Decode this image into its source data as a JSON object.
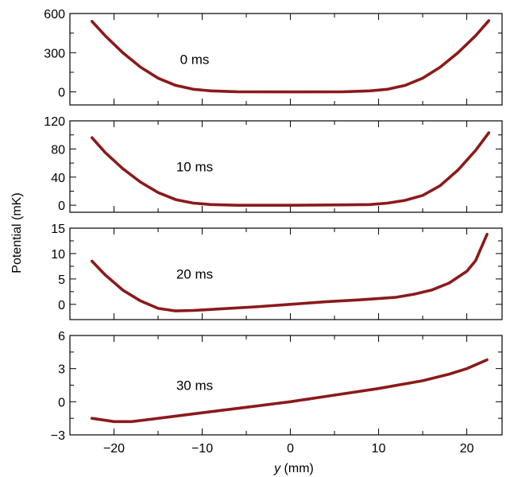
{
  "colors": {
    "curve": "#8b1a1a",
    "axis": "#000000"
  },
  "chart_data": {
    "type": "line",
    "ylabel": "Potential (mK)",
    "xlabel_italic": "y",
    "xlabel_unit": " (mm)",
    "xlim": [
      -25,
      24
    ],
    "x_ticks": [
      -20,
      -10,
      0,
      10,
      20
    ],
    "x_tick_labels": [
      "−20",
      "−10",
      "0",
      "10",
      "20"
    ],
    "panels": [
      {
        "label": "0 ms",
        "ylim": [
          -100,
          600
        ],
        "y_ticks": [
          0,
          300,
          600
        ],
        "y_tick_labels": [
          "0",
          "300",
          "600"
        ],
        "series": [
          {
            "x": [
              -22.5,
              -21,
              -19,
              -17,
              -15,
              -13,
              -11,
              -9,
              -6,
              0,
              6,
              9,
              11,
              13,
              15,
              17,
              19,
              21,
              22.5
            ],
            "y": [
              540,
              430,
              300,
              190,
              105,
              50,
              20,
              8,
              1,
              0,
              1,
              8,
              20,
              50,
              105,
              190,
              300,
              430,
              545
            ]
          }
        ]
      },
      {
        "label": "10 ms",
        "ylim": [
          -10,
          120
        ],
        "y_ticks": [
          0,
          40,
          80,
          120
        ],
        "y_tick_labels": [
          "0",
          "40",
          "80",
          "120"
        ],
        "series": [
          {
            "x": [
              -22.5,
              -21,
              -19,
              -17,
              -15,
              -13,
              -11,
              -9,
              -6,
              0,
              6,
              9,
              11,
              13,
              15,
              17,
              19,
              21,
              22.5
            ],
            "y": [
              96,
              75,
              52,
              33,
              18,
              8,
              3,
              1,
              0,
              0,
              0.5,
              1,
              3,
              7,
              14,
              28,
              50,
              78,
              103
            ]
          }
        ]
      },
      {
        "label": "20 ms",
        "ylim": [
          -3,
          15
        ],
        "y_ticks": [
          0,
          5,
          10,
          15
        ],
        "y_tick_labels": [
          "0",
          "5",
          "10",
          "15"
        ],
        "series": [
          {
            "x": [
              -22.5,
              -21,
              -19,
              -17,
              -15,
              -13,
              -11,
              -8,
              -4,
              0,
              4,
              8,
              12,
              14,
              16,
              18,
              20,
              21,
              22.3
            ],
            "y": [
              8.5,
              5.8,
              2.8,
              0.7,
              -0.8,
              -1.3,
              -1.2,
              -0.9,
              -0.5,
              0,
              0.5,
              0.9,
              1.4,
              2,
              2.8,
              4.2,
              6.5,
              8.6,
              13.8
            ]
          }
        ]
      },
      {
        "label": "30 ms",
        "ylim": [
          -3,
          6
        ],
        "y_ticks": [
          -3,
          0,
          3,
          6
        ],
        "y_tick_labels": [
          "−3",
          "0",
          "3",
          "6"
        ],
        "series": [
          {
            "x": [
              -22.5,
              -20,
              -18,
              -16,
              -14,
              -10,
              -5,
              0,
              5,
              10,
              15,
              18,
              20,
              22.3
            ],
            "y": [
              -1.5,
              -1.8,
              -1.8,
              -1.6,
              -1.4,
              -1.0,
              -0.5,
              0,
              0.6,
              1.2,
              1.9,
              2.5,
              3.0,
              3.8
            ]
          }
        ]
      }
    ]
  }
}
